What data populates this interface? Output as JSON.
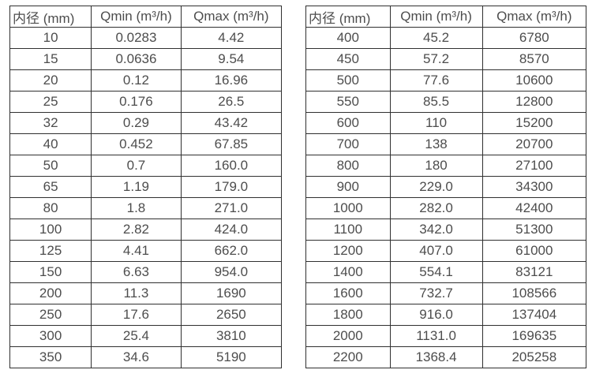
{
  "colors": {
    "text": "#4d4d4d",
    "border": "#303030",
    "background": "#ffffff"
  },
  "tables": [
    {
      "name": "flow-rate-table-small-diameters",
      "headers": [
        "内径 (mm)",
        "Qmin (m³/h)",
        "Qmax (m³/h)"
      ],
      "rows": [
        [
          "10",
          "0.0283",
          "4.42"
        ],
        [
          "15",
          "0.0636",
          "9.54"
        ],
        [
          "20",
          "0.12",
          "16.96"
        ],
        [
          "25",
          "0.176",
          "26.5"
        ],
        [
          "32",
          "0.29",
          "43.42"
        ],
        [
          "40",
          "0.452",
          "67.85"
        ],
        [
          "50",
          "0.7",
          "160.0"
        ],
        [
          "65",
          "1.19",
          "179.0"
        ],
        [
          "80",
          "1.8",
          "271.0"
        ],
        [
          "100",
          "2.82",
          "424.0"
        ],
        [
          "125",
          "4.41",
          "662.0"
        ],
        [
          "150",
          "6.63",
          "954.0"
        ],
        [
          "200",
          "11.3",
          "1690"
        ],
        [
          "250",
          "17.6",
          "2650"
        ],
        [
          "300",
          "25.4",
          "3810"
        ],
        [
          "350",
          "34.6",
          "5190"
        ]
      ]
    },
    {
      "name": "flow-rate-table-large-diameters",
      "headers": [
        "内径 (mm)",
        "Qmin (m³/h)",
        "Qmax (m³/h)"
      ],
      "rows": [
        [
          "400",
          "45.2",
          "6780"
        ],
        [
          "450",
          "57.2",
          "8570"
        ],
        [
          "500",
          "77.6",
          "10600"
        ],
        [
          "550",
          "85.5",
          "12800"
        ],
        [
          "600",
          "110",
          "15200"
        ],
        [
          "700",
          "138",
          "20700"
        ],
        [
          "800",
          "180",
          "27100"
        ],
        [
          "900",
          "229.0",
          "34300"
        ],
        [
          "1000",
          "282.0",
          "42400"
        ],
        [
          "1100",
          "342.0",
          "51300"
        ],
        [
          "1200",
          "407.0",
          "61000"
        ],
        [
          "1400",
          "554.1",
          "83121"
        ],
        [
          "1600",
          "732.7",
          "108566"
        ],
        [
          "1800",
          "916.0",
          "137404"
        ],
        [
          "2000",
          "1131.0",
          "169635"
        ],
        [
          "2200",
          "1368.4",
          "205258"
        ]
      ]
    }
  ]
}
